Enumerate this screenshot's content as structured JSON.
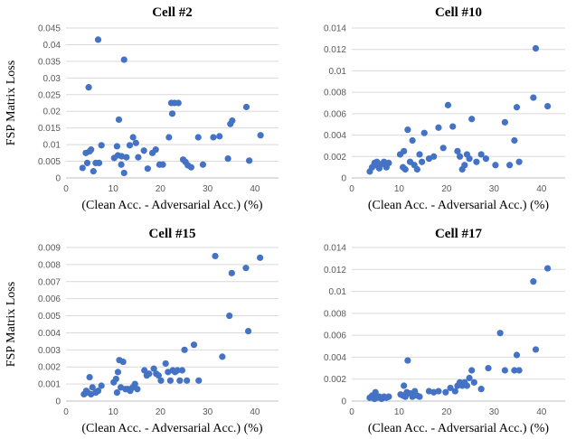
{
  "colors": {
    "point": "#4472C4",
    "grid": "#D9D9D9",
    "tick": "#595959"
  },
  "chart_data": [
    {
      "type": "scatter",
      "title": "Cell #2",
      "xlabel": "(Clean Acc. - Adversarial Acc.) (%)",
      "ylabel": "FSP Matrix Loss",
      "xlim": [
        0,
        45
      ],
      "ylim": [
        0,
        0.045
      ],
      "xticks": [
        "0",
        "10",
        "20",
        "30",
        "40"
      ],
      "yticks": [
        "0",
        "0.005",
        "0.01",
        "0.015",
        "0.02",
        "0.025",
        "0.03",
        "0.035",
        "0.04",
        "0.045"
      ],
      "grid": true,
      "x": [
        3.5,
        4.2,
        4.5,
        5,
        5.3,
        5.8,
        6.3,
        7,
        7.5,
        10.2,
        10.8,
        11,
        11.2,
        11.7,
        11.8,
        12.3,
        12.8,
        13.5,
        14.2,
        14.8,
        15.3,
        16.5,
        17.3,
        18.3,
        19,
        19.8,
        20.5,
        21.8,
        22.3,
        22.5,
        23,
        23.8,
        24.8,
        25.3,
        25.8,
        26.5,
        28,
        29,
        31.2,
        32.5,
        34.3,
        34.8,
        35.2,
        38.2,
        38.8,
        41.2,
        6.8,
        12.3,
        4.8
      ],
      "y": [
        0.003,
        0.0075,
        0.0045,
        0.008,
        0.0085,
        0.002,
        0.0045,
        0.0045,
        0.0098,
        0.006,
        0.0095,
        0.0068,
        0.0175,
        0.004,
        0.0065,
        0.0015,
        0.0062,
        0.0098,
        0.0122,
        0.0105,
        0.0062,
        0.0082,
        0.0028,
        0.0075,
        0.0085,
        0.004,
        0.004,
        0.0122,
        0.0225,
        0.0193,
        0.0225,
        0.0225,
        0.0055,
        0.0048,
        0.0038,
        0.0032,
        0.0122,
        0.004,
        0.0122,
        0.0125,
        0.0058,
        0.0162,
        0.0172,
        0.0213,
        0.0052,
        0.0128,
        0.0415,
        0.0355,
        0.0272
      ]
    },
    {
      "type": "scatter",
      "title": "Cell #10",
      "xlabel": "(Clean Acc. - Adversarial Acc.) (%)",
      "ylabel": "",
      "xlim": [
        0,
        45
      ],
      "ylim": [
        0,
        0.014
      ],
      "xticks": [
        "0",
        "10",
        "20",
        "30",
        "40"
      ],
      "yticks": [
        "0",
        "0.002",
        "0.004",
        "0.006",
        "0.008",
        "0.01",
        "0.012",
        "0.014"
      ],
      "grid": true,
      "x": [
        3.8,
        4.3,
        4.8,
        5,
        5.3,
        5.8,
        6.3,
        6.8,
        7.3,
        7.8,
        10.2,
        10.8,
        11,
        11.3,
        11.8,
        12.3,
        12.8,
        13.2,
        13.8,
        14.3,
        14.8,
        15.3,
        16.3,
        17.3,
        18.3,
        19.3,
        20.3,
        21.3,
        22.3,
        22.8,
        23.3,
        23.8,
        24.3,
        24.8,
        25.3,
        26.3,
        27.3,
        28.3,
        30.3,
        32.3,
        33.3,
        34.3,
        34.8,
        35.3,
        38.3,
        38.8,
        41.3
      ],
      "y": [
        0.0006,
        0.001,
        0.0014,
        0.0012,
        0.0015,
        0.0009,
        0.0013,
        0.0015,
        0.001,
        0.0014,
        0.0022,
        0.001,
        0.0025,
        0.0008,
        0.0045,
        0.0015,
        0.0035,
        0.0012,
        0.0008,
        0.0022,
        0.0015,
        0.0042,
        0.0018,
        0.002,
        0.0047,
        0.0028,
        0.0068,
        0.0048,
        0.0025,
        0.002,
        0.0008,
        0.0012,
        0.0022,
        0.0018,
        0.0055,
        0.0015,
        0.0022,
        0.0018,
        0.0012,
        0.0052,
        0.0012,
        0.0035,
        0.0066,
        0.0015,
        0.0075,
        0.0121,
        0.0067
      ]
    },
    {
      "type": "scatter",
      "title": "Cell #15",
      "xlabel": "(Clean Acc. - Adversarial Acc.) (%)",
      "ylabel": "FSP Matrix Loss",
      "xlim": [
        0,
        45
      ],
      "ylim": [
        0,
        0.009
      ],
      "xticks": [
        "0",
        "10",
        "20",
        "30",
        "40"
      ],
      "yticks": [
        "0",
        "0.001",
        "0.002",
        "0.003",
        "0.004",
        "0.005",
        "0.006",
        "0.007",
        "0.008",
        "0.009"
      ],
      "grid": true,
      "x": [
        3.8,
        4.3,
        4.6,
        5,
        5.3,
        5.6,
        6.3,
        6.8,
        7.5,
        10.1,
        10.6,
        11,
        11.3,
        11.6,
        12.1,
        12.6,
        13.1,
        13.6,
        14.1,
        14.6,
        15.1,
        16.6,
        17.1,
        17.6,
        18.6,
        19.1,
        19.6,
        20.1,
        21.1,
        21.6,
        22.1,
        22.6,
        23.1,
        23.6,
        24.1,
        24.6,
        25.1,
        25.6,
        27.1,
        28.1,
        31.6,
        33.1,
        34.6,
        35.1,
        38.1,
        38.6,
        41.1,
        10.8
      ],
      "y": [
        0.0004,
        0.0006,
        0.0005,
        0.0014,
        0.0004,
        0.0008,
        0.0005,
        0.0006,
        0.0009,
        0.0011,
        0.0013,
        0.0017,
        0.0024,
        0.0008,
        0.0023,
        0.0007,
        0.0007,
        0.0006,
        0.0008,
        0.001,
        0.0007,
        0.0018,
        0.0015,
        0.0016,
        0.0019,
        0.0016,
        0.0015,
        0.0012,
        0.0022,
        0.0017,
        0.0012,
        0.0018,
        0.0017,
        0.0018,
        0.0012,
        0.0018,
        0.003,
        0.0012,
        0.0033,
        0.0012,
        0.0085,
        0.0026,
        0.005,
        0.0075,
        0.0078,
        0.0041,
        0.0084,
        0.0005
      ]
    },
    {
      "type": "scatter",
      "title": "Cell #17",
      "xlabel": "(Clean Acc. - Adversarial Acc.) (%)",
      "ylabel": "",
      "xlim": [
        0,
        45
      ],
      "ylim": [
        0,
        0.014
      ],
      "xticks": [
        "0",
        "10",
        "20",
        "30",
        "40"
      ],
      "yticks": [
        "0",
        "0.002",
        "0.004",
        "0.006",
        "0.008",
        "0.01",
        "0.012",
        "0.014"
      ],
      "grid": true,
      "x": [
        3.8,
        4.3,
        4.8,
        5,
        5.3,
        5.8,
        6.3,
        6.8,
        7.3,
        7.8,
        10.3,
        10.8,
        11,
        11.3,
        11.6,
        11.8,
        12.3,
        12.8,
        13.3,
        13.8,
        14.3,
        16.3,
        17.3,
        18.3,
        19.8,
        20.8,
        21.8,
        22.3,
        22.8,
        23.3,
        23.8,
        24.3,
        24.8,
        25.3,
        25.8,
        27.3,
        28.8,
        31.3,
        32.3,
        34.3,
        34.8,
        35.3,
        38.3,
        38.8,
        41.3
      ],
      "y": [
        0.0003,
        0.0005,
        0.0002,
        0.0008,
        0.0003,
        0.0004,
        0.0002,
        0.0004,
        0.0003,
        0.0004,
        0.0006,
        0.0005,
        0.0014,
        0.0004,
        0.0008,
        0.0037,
        0.0007,
        0.0004,
        0.0009,
        0.0005,
        0.0004,
        0.0009,
        0.0008,
        0.0009,
        0.0008,
        0.0012,
        0.0009,
        0.0014,
        0.0017,
        0.0014,
        0.0017,
        0.0014,
        0.0021,
        0.0028,
        0.0017,
        0.0011,
        0.003,
        0.0062,
        0.0028,
        0.0028,
        0.0042,
        0.0028,
        0.0109,
        0.0047,
        0.0121
      ]
    }
  ]
}
